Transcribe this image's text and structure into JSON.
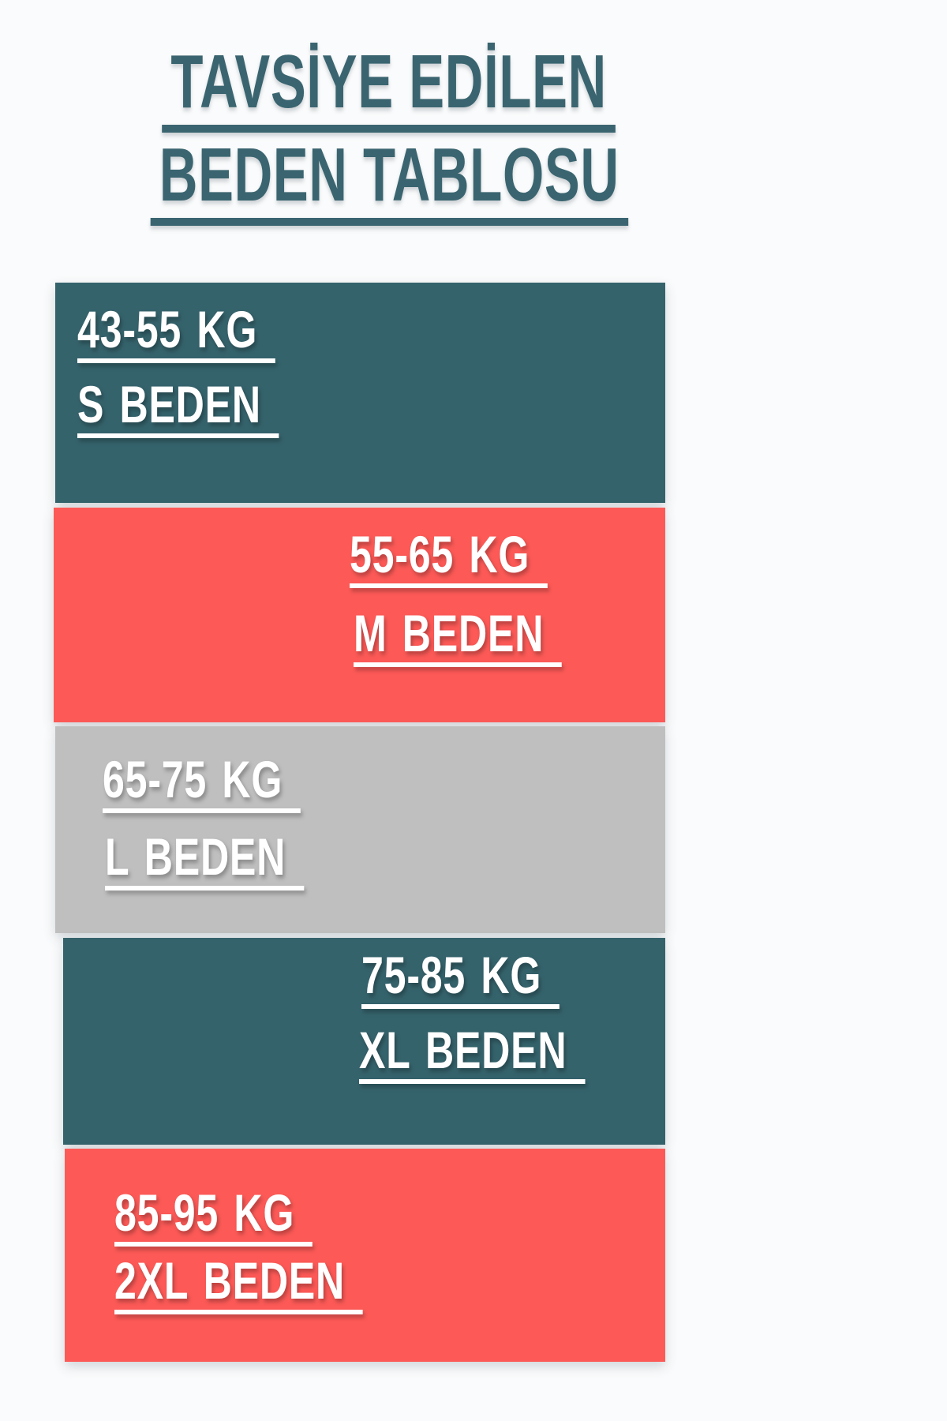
{
  "title": {
    "line1": "TAVSİYE EDİLEN",
    "line2": "BEDEN TABLOSU"
  },
  "bands": [
    {
      "weight": "43-55 KG",
      "size": "S BEDEN",
      "color": "#35636c",
      "text_align": "left"
    },
    {
      "weight": "55-65 KG",
      "size": "M BEDEN",
      "color": "#fd5a57",
      "text_align": "right"
    },
    {
      "weight": "65-75 KG",
      "size": "L BEDEN",
      "color": "#bfbfbf",
      "text_align": "left"
    },
    {
      "weight": "75-85 KG",
      "size": "XL BEDEN",
      "color": "#35636c",
      "text_align": "right"
    },
    {
      "weight": "85-95 KG",
      "size": "2XL BEDEN",
      "color": "#fd5a57",
      "text_align": "left"
    }
  ],
  "colors": {
    "teal": "#35636c",
    "coral": "#fd5a57",
    "gray": "#bfbfbf",
    "title_teal": "#3a6570",
    "text_white": "#ffffff",
    "background": "#fafbfc"
  },
  "chart_data": {
    "type": "table",
    "title": "TAVSİYE EDİLEN BEDEN TABLOSU",
    "rows": [
      {
        "weight_range_kg": "43-55",
        "size": "S"
      },
      {
        "weight_range_kg": "55-65",
        "size": "M"
      },
      {
        "weight_range_kg": "65-75",
        "size": "L"
      },
      {
        "weight_range_kg": "75-85",
        "size": "XL"
      },
      {
        "weight_range_kg": "85-95",
        "size": "2XL"
      }
    ]
  }
}
